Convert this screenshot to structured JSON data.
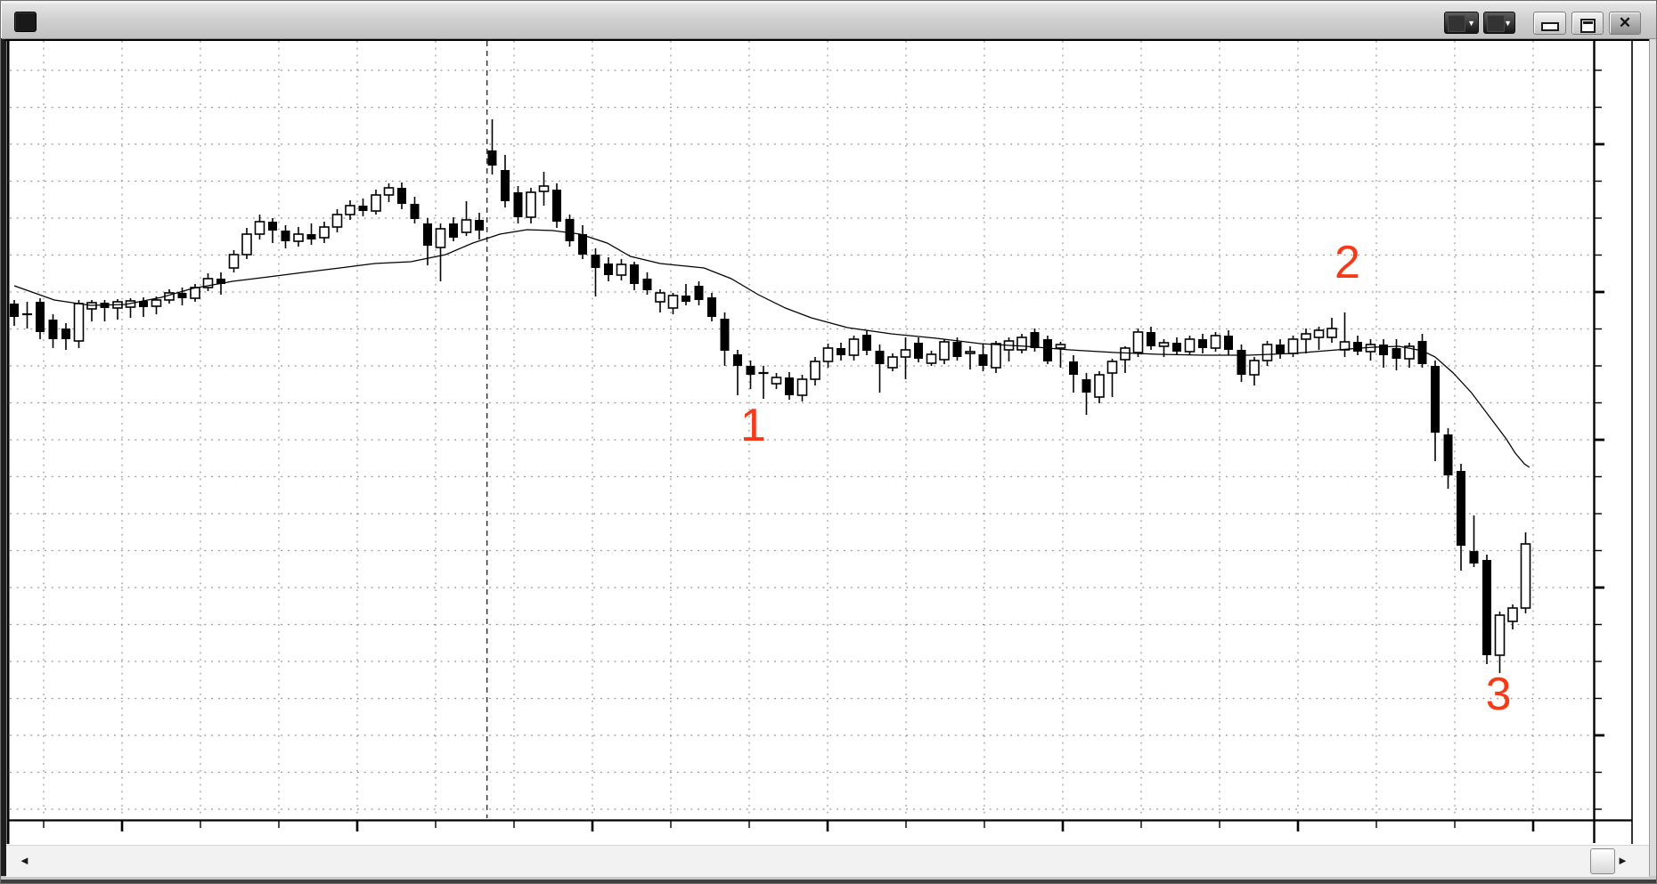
{
  "window": {
    "title": "",
    "titlebar": {
      "dropdown_glyph": "▼",
      "close_glyph": "✕"
    }
  },
  "scrollbar": {
    "left_glyph": "◄",
    "right_glyph": "►"
  },
  "annotation_color": "#f63a17",
  "chart_data": {
    "type": "candlestick",
    "title": "",
    "xlabel": "",
    "ylabel": "",
    "legend": "none",
    "grid": true,
    "note": "Daily candlestick chart with single moving-average overlay; no axis value labels are legible. Values in arbitrary chart units (0 = bottom axis).",
    "ylim": [
      0,
      875
    ],
    "candles_ohlc": [
      [
        580,
        584,
        555,
        565
      ],
      [
        568,
        582,
        552,
        568
      ],
      [
        582,
        586,
        540,
        548
      ],
      [
        562,
        568,
        530,
        540
      ],
      [
        552,
        558,
        528,
        540
      ],
      [
        538,
        584,
        530,
        580
      ],
      [
        574,
        584,
        560,
        581
      ],
      [
        581,
        584,
        560,
        575
      ],
      [
        575,
        585,
        562,
        582
      ],
      [
        576,
        586,
        564,
        583
      ],
      [
        583,
        587,
        565,
        576
      ],
      [
        577,
        588,
        568,
        584
      ],
      [
        584,
        596,
        580,
        592
      ],
      [
        592,
        598,
        578,
        586
      ],
      [
        586,
        602,
        582,
        598
      ],
      [
        598,
        614,
        594,
        608
      ],
      [
        608,
        615,
        590,
        602
      ],
      [
        620,
        640,
        615,
        635
      ],
      [
        635,
        665,
        630,
        658
      ],
      [
        658,
        680,
        652,
        672
      ],
      [
        672,
        676,
        648,
        662
      ],
      [
        662,
        668,
        642,
        650
      ],
      [
        650,
        666,
        644,
        658
      ],
      [
        658,
        670,
        646,
        652
      ],
      [
        654,
        672,
        648,
        666
      ],
      [
        666,
        686,
        660,
        680
      ],
      [
        680,
        696,
        674,
        690
      ],
      [
        690,
        698,
        678,
        684
      ],
      [
        684,
        708,
        680,
        702
      ],
      [
        702,
        715,
        694,
        710
      ],
      [
        710,
        716,
        686,
        692
      ],
      [
        692,
        700,
        670,
        675
      ],
      [
        670,
        676,
        623,
        645
      ],
      [
        643,
        670,
        605,
        664
      ],
      [
        670,
        677,
        650,
        654
      ],
      [
        660,
        695,
        656,
        674
      ],
      [
        674,
        682,
        652,
        662
      ],
      [
        752,
        787,
        725,
        735
      ],
      [
        730,
        747,
        688,
        695
      ],
      [
        705,
        712,
        670,
        677
      ],
      [
        677,
        710,
        670,
        705
      ],
      [
        706,
        728,
        690,
        712
      ],
      [
        708,
        715,
        665,
        672
      ],
      [
        675,
        680,
        644,
        650
      ],
      [
        658,
        668,
        630,
        635
      ],
      [
        635,
        642,
        588,
        620
      ],
      [
        625,
        632,
        605,
        612
      ],
      [
        612,
        630,
        606,
        624
      ],
      [
        624,
        627,
        595,
        602
      ],
      [
        608,
        615,
        590,
        595
      ],
      [
        582,
        596,
        570,
        592
      ],
      [
        575,
        592,
        568,
        589
      ],
      [
        589,
        602,
        578,
        582
      ],
      [
        600,
        605,
        578,
        584
      ],
      [
        587,
        592,
        560,
        565
      ],
      [
        563,
        570,
        510,
        527
      ],
      [
        523,
        528,
        477,
        510
      ],
      [
        510,
        516,
        484,
        500
      ],
      [
        502,
        510,
        473,
        502
      ],
      [
        490,
        502,
        484,
        497
      ],
      [
        497,
        503,
        472,
        477
      ],
      [
        477,
        500,
        470,
        495
      ],
      [
        495,
        520,
        488,
        515
      ],
      [
        515,
        535,
        508,
        530
      ],
      [
        530,
        536,
        516,
        522
      ],
      [
        522,
        544,
        516,
        540
      ],
      [
        545,
        550,
        522,
        527
      ],
      [
        527,
        534,
        480,
        512
      ],
      [
        508,
        524,
        504,
        520
      ],
      [
        520,
        542,
        495,
        528
      ],
      [
        536,
        542,
        514,
        518
      ],
      [
        513,
        527,
        510,
        523
      ],
      [
        517,
        540,
        512,
        537
      ],
      [
        537,
        542,
        516,
        520
      ],
      [
        524,
        532,
        506,
        526
      ],
      [
        523,
        535,
        504,
        510
      ],
      [
        508,
        538,
        502,
        535
      ],
      [
        528,
        542,
        515,
        538
      ],
      [
        528,
        546,
        524,
        542
      ],
      [
        548,
        552,
        526,
        530
      ],
      [
        540,
        544,
        512,
        515
      ],
      [
        530,
        537,
        508,
        534
      ],
      [
        515,
        522,
        480,
        500
      ],
      [
        495,
        502,
        455,
        480
      ],
      [
        475,
        504,
        468,
        500
      ],
      [
        502,
        518,
        475,
        515
      ],
      [
        517,
        532,
        502,
        530
      ],
      [
        525,
        552,
        520,
        548
      ],
      [
        548,
        554,
        528,
        532
      ],
      [
        532,
        540,
        520,
        536
      ],
      [
        536,
        542,
        522,
        526
      ],
      [
        526,
        544,
        522,
        540
      ],
      [
        540,
        546,
        524,
        530
      ],
      [
        530,
        548,
        526,
        544
      ],
      [
        544,
        550,
        522,
        528
      ],
      [
        528,
        534,
        492,
        500
      ],
      [
        500,
        520,
        488,
        516
      ],
      [
        516,
        538,
        510,
        534
      ],
      [
        534,
        540,
        518,
        524
      ],
      [
        524,
        544,
        520,
        540
      ],
      [
        540,
        552,
        524,
        546
      ],
      [
        542,
        554,
        528,
        550
      ],
      [
        542,
        564,
        536,
        552
      ],
      [
        528,
        570,
        520,
        537
      ],
      [
        537,
        544,
        522,
        526
      ],
      [
        526,
        540,
        516,
        534
      ],
      [
        534,
        540,
        508,
        522
      ],
      [
        530,
        540,
        505,
        518
      ],
      [
        518,
        536,
        508,
        532
      ],
      [
        538,
        546,
        508,
        512
      ],
      [
        510,
        516,
        403,
        435
      ],
      [
        433,
        440,
        372,
        387
      ],
      [
        392,
        400,
        280,
        308
      ],
      [
        302,
        342,
        284,
        288
      ],
      [
        292,
        298,
        175,
        185
      ],
      [
        185,
        234,
        165,
        230
      ],
      [
        223,
        242,
        214,
        238
      ],
      [
        238,
        323,
        232,
        310
      ]
    ],
    "ma_points": [
      [
        0,
        600
      ],
      [
        3.1,
        584
      ],
      [
        5.9,
        578
      ],
      [
        8.6,
        579
      ],
      [
        11.4,
        587
      ],
      [
        13.8,
        597
      ],
      [
        16.9,
        605
      ],
      [
        19.7,
        610
      ],
      [
        22.4,
        615
      ],
      [
        25.2,
        620
      ],
      [
        27.9,
        625
      ],
      [
        30.7,
        627
      ],
      [
        33.4,
        635
      ],
      [
        35.5,
        648
      ],
      [
        37.6,
        658
      ],
      [
        39.7,
        663
      ],
      [
        41.7,
        662
      ],
      [
        43.8,
        658
      ],
      [
        45.9,
        648
      ],
      [
        47.7,
        633
      ],
      [
        50,
        625
      ],
      [
        53.4,
        620
      ],
      [
        55.5,
        608
      ],
      [
        57.6,
        590
      ],
      [
        59.7,
        575
      ],
      [
        61.7,
        564
      ],
      [
        64.5,
        553
      ],
      [
        67.9,
        546
      ],
      [
        71.4,
        541
      ],
      [
        74.8,
        535
      ],
      [
        78.3,
        532
      ],
      [
        81.7,
        528
      ],
      [
        85.2,
        525
      ],
      [
        88.6,
        523
      ],
      [
        92.1,
        522
      ],
      [
        95.5,
        522
      ],
      [
        99,
        524
      ],
      [
        102.4,
        528
      ],
      [
        105.2,
        531
      ],
      [
        107.2,
        532
      ],
      [
        109,
        527
      ],
      [
        110,
        520
      ],
      [
        111.4,
        502
      ],
      [
        112.8,
        480
      ],
      [
        114.1,
        455
      ],
      [
        115.5,
        428
      ],
      [
        116.2,
        412
      ],
      [
        116.9,
        400
      ],
      [
        117.3,
        396
      ]
    ],
    "separator_index": 36.6,
    "annotations": [
      {
        "text": "1",
        "x_index": 57.2,
        "value": 445
      },
      {
        "text": "2",
        "x_index": 103.2,
        "value": 628
      },
      {
        "text": "3",
        "x_index": 114.9,
        "value": 143
      }
    ]
  }
}
